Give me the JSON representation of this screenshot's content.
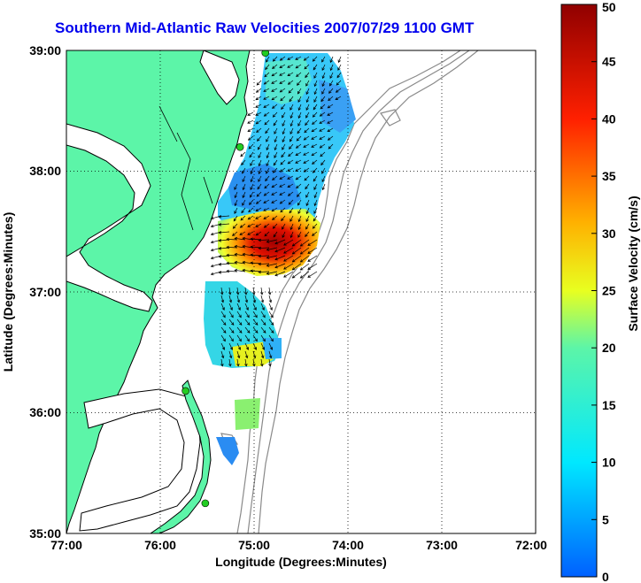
{
  "title": "Southern Mid-Atlantic Raw Velocities 2007/07/29 1100 GMT",
  "axes": {
    "xlabel": "Longitude (Degrees:Minutes)",
    "ylabel": "Latitude (Degrees:Minutes)",
    "xticks": [
      "77:00",
      "76:00",
      "75:00",
      "74:00",
      "73:00",
      "72:00"
    ],
    "yticks": [
      "39:00",
      "38:00",
      "37:00",
      "36:00",
      "35:00"
    ]
  },
  "colorbar": {
    "label": "Surface Velocity (cm/s)",
    "min": 0,
    "max": 50,
    "ticks": [
      "50",
      "45",
      "40",
      "35",
      "30",
      "25",
      "20",
      "15",
      "10",
      "5",
      "0"
    ]
  },
  "colors": {
    "land": "#5cf5a8",
    "coast": "#000000",
    "bathymetry": "#8a8a8a",
    "title": "#0000ee",
    "station": "#22cc22"
  },
  "stations": [
    {
      "lon": -74.88,
      "lat": 38.98
    },
    {
      "lon": -75.15,
      "lat": 38.2
    },
    {
      "lon": -75.73,
      "lat": 36.18
    },
    {
      "lon": -75.52,
      "lat": 35.25
    }
  ]
}
